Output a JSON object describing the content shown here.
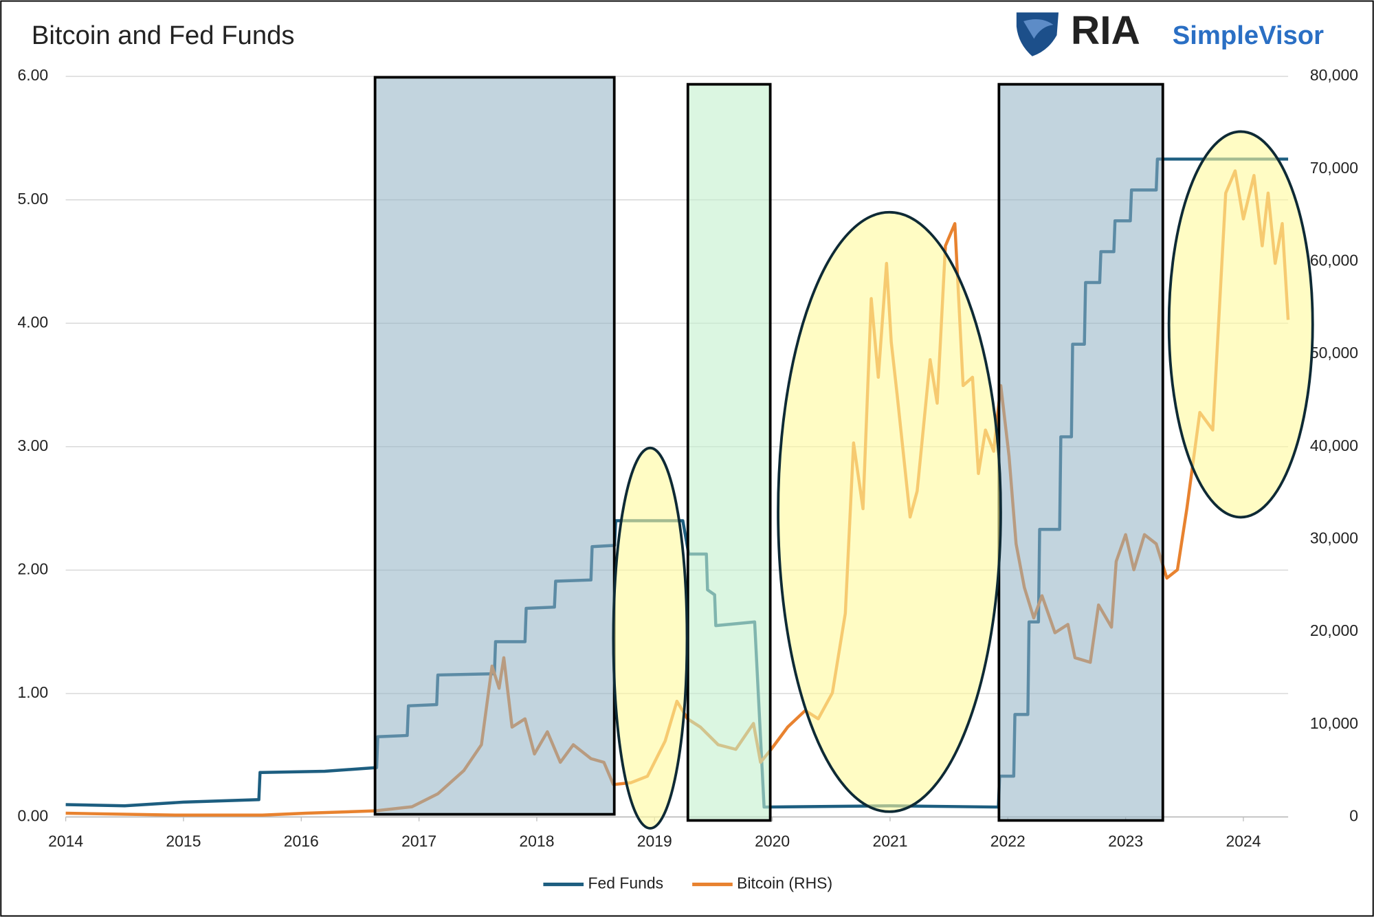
{
  "chart_data": {
    "type": "line",
    "title": "Bitcoin and Fed Funds",
    "brand": {
      "mark": "RIA",
      "name": "SimpleVisor"
    },
    "xlim": [
      2014,
      2024.38
    ],
    "xticks": [
      2014,
      2015,
      2016,
      2017,
      2018,
      2019,
      2020,
      2021,
      2022,
      2023,
      2024
    ],
    "ylim": [
      0,
      6
    ],
    "yticks": [
      {
        "value": 0,
        "label": "0.00"
      },
      {
        "value": 1,
        "label": "1.00"
      },
      {
        "value": 2,
        "label": "2.00"
      },
      {
        "value": 3,
        "label": "3.00"
      },
      {
        "value": 4,
        "label": "4.00"
      },
      {
        "value": 5,
        "label": "5.00"
      },
      {
        "value": 6,
        "label": "6.00"
      }
    ],
    "y2lim": [
      0,
      80000
    ],
    "y2ticks": [
      0,
      {
        "value": 10000,
        "label": "10,000"
      },
      {
        "value": 20000,
        "label": "20,000"
      },
      {
        "value": 30000,
        "label": "30,000"
      },
      {
        "value": 40000,
        "label": "40,000"
      },
      {
        "value": 50000,
        "label": "50,000"
      },
      {
        "value": 60000,
        "label": "60,000"
      },
      {
        "value": 70000,
        "label": "70,000"
      },
      {
        "value": 80000,
        "label": "80,000"
      }
    ],
    "grid": true,
    "legend": "bottom",
    "series": [
      {
        "name": "Fed Funds",
        "color": "#1d5e80",
        "x": [
          2014.0,
          2014.5,
          2015.0,
          2015.64,
          2015.65,
          2016.2,
          2016.64,
          2016.65,
          2016.9,
          2016.91,
          2017.15,
          2017.16,
          2017.64,
          2017.65,
          2017.9,
          2017.91,
          2018.15,
          2018.16,
          2018.46,
          2018.47,
          2018.66,
          2018.67,
          2019.24,
          2019.29,
          2019.44,
          2019.45,
          2019.51,
          2019.52,
          2019.85,
          2019.93,
          2021.0,
          2021.92,
          2021.93,
          2022.05,
          2022.06,
          2022.17,
          2022.18,
          2022.26,
          2022.27,
          2022.44,
          2022.45,
          2022.54,
          2022.55,
          2022.65,
          2022.66,
          2022.78,
          2022.79,
          2022.9,
          2022.91,
          2023.04,
          2023.05,
          2023.26,
          2023.27,
          2024.38
        ],
        "values": [
          0.1,
          0.09,
          0.12,
          0.14,
          0.36,
          0.37,
          0.4,
          0.65,
          0.66,
          0.9,
          0.91,
          1.15,
          1.16,
          1.42,
          1.42,
          1.69,
          1.7,
          1.91,
          1.92,
          2.19,
          2.2,
          2.4,
          2.4,
          2.13,
          2.13,
          1.84,
          1.8,
          1.55,
          1.58,
          0.08,
          0.09,
          0.08,
          0.33,
          0.33,
          0.83,
          0.83,
          1.58,
          1.58,
          2.33,
          2.33,
          3.08,
          3.08,
          3.83,
          3.83,
          4.33,
          4.33,
          4.58,
          4.58,
          4.83,
          4.83,
          5.08,
          5.08,
          5.33,
          5.33
        ]
      },
      {
        "name": "Bitcoin (RHS)",
        "color": "#e8822f",
        "axis": "y2",
        "x": [
          2014.0,
          2014.93,
          2015.67,
          2016.04,
          2016.62,
          2016.94,
          2017.16,
          2017.38,
          2017.53,
          2017.62,
          2017.68,
          2017.72,
          2017.79,
          2017.9,
          2017.98,
          2018.09,
          2018.2,
          2018.31,
          2018.46,
          2018.57,
          2018.65,
          2018.8,
          2018.94,
          2019.09,
          2019.19,
          2019.28,
          2019.39,
          2019.54,
          2019.69,
          2019.84,
          2019.9,
          2019.99,
          2020.13,
          2020.28,
          2020.39,
          2020.51,
          2020.62,
          2020.69,
          2020.77,
          2020.84,
          2020.9,
          2020.97,
          2021.01,
          2021.06,
          2021.17,
          2021.23,
          2021.34,
          2021.4,
          2021.47,
          2021.55,
          2021.62,
          2021.7,
          2021.75,
          2021.81,
          2021.88,
          2021.94,
          2022.01,
          2022.07,
          2022.14,
          2022.22,
          2022.29,
          2022.4,
          2022.51,
          2022.57,
          2022.7,
          2022.77,
          2022.88,
          2022.92,
          2023.0,
          2023.07,
          2023.16,
          2023.26,
          2023.35,
          2023.44,
          2023.52,
          2023.63,
          2023.74,
          2023.85,
          2023.93,
          2024.0,
          2024.09,
          2024.16,
          2024.21,
          2024.27,
          2024.33,
          2024.38
        ],
        "values": [
          400,
          200,
          200,
          400,
          650,
          1100,
          2500,
          5000,
          7800,
          16300,
          13900,
          17200,
          9700,
          10600,
          6800,
          9200,
          5900,
          7800,
          6300,
          5900,
          3500,
          3700,
          4400,
          8200,
          12500,
          10600,
          9700,
          7800,
          7300,
          10100,
          5900,
          7300,
          9700,
          11500,
          10600,
          13400,
          22000,
          40400,
          33300,
          56000,
          47500,
          59800,
          51300,
          45600,
          32400,
          35200,
          49400,
          44700,
          61700,
          64100,
          46600,
          47500,
          37100,
          41800,
          39500,
          46600,
          39000,
          29500,
          24800,
          21500,
          23900,
          19900,
          20800,
          17200,
          16700,
          22900,
          20500,
          27600,
          30500,
          26700,
          30500,
          29500,
          25800,
          26700,
          33300,
          43700,
          41800,
          67400,
          69800,
          64600,
          69300,
          61700,
          67400,
          59800,
          64100,
          53700
        ]
      }
    ]
  }
}
